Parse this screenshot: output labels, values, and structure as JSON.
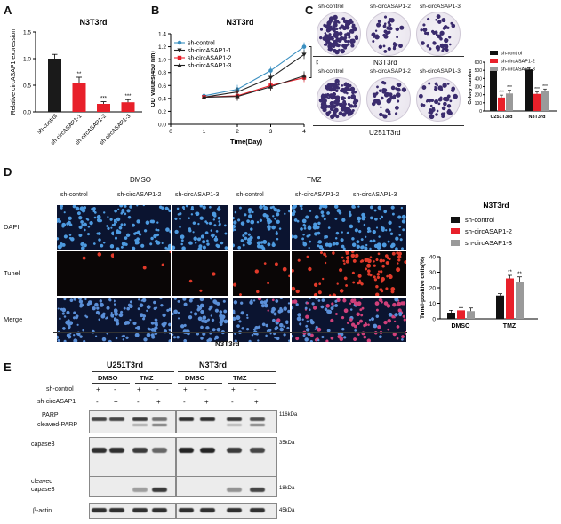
{
  "panels": {
    "A": {
      "letter": "A",
      "title": "N3T3rd"
    },
    "B": {
      "letter": "B",
      "title": "N3T3rd"
    },
    "C": {
      "letter": "C",
      "top_labels": [
        "sh-control",
        "sh-circASAP1-2",
        "sh-circASAP1-3"
      ],
      "row1_label": "N3T3rd",
      "row2_label": "U251T3rd"
    },
    "D": {
      "letter": "D",
      "group1": "DMSO",
      "group2": "TMZ",
      "columns": [
        "sh-control",
        "sh-circASAP1-2",
        "sh-circASAP1-3",
        "sh-control",
        "sh-circASAP1-2",
        "sh-circASAP1-3"
      ],
      "rows": [
        "DAPI",
        "Tunel",
        "Merge"
      ],
      "bottom_label": "N3T3rd"
    },
    "E": {
      "letter": "E",
      "cell1": "U251T3rd",
      "cell2": "N3T3rd",
      "treat1": "DMSO",
      "treat2": "TMZ",
      "row_control": "sh-control",
      "row_knock": "sh-circASAP1",
      "control_pattern": [
        "+",
        "-",
        "+",
        "-"
      ],
      "knock_pattern": [
        "-",
        "+",
        "-",
        "+"
      ],
      "blot_labels": [
        "PARP",
        "cleaved-PARP",
        "capase3",
        "cleaved capase3",
        "β-actin"
      ],
      "mw": [
        "116kDa",
        "35kDa",
        "18kDa",
        "45kDa"
      ]
    }
  },
  "chart_data": [
    {
      "type": "bar",
      "title": "N3T3rd",
      "categories": [
        "sh-control",
        "sh-circASAP1-1",
        "sh-circASAP1-2",
        "sh-circASAP1-3"
      ],
      "values": [
        1.0,
        0.55,
        0.15,
        0.18
      ],
      "errors": [
        0.08,
        0.1,
        0.04,
        0.05
      ],
      "significance": [
        "",
        "**",
        "***",
        "***"
      ],
      "colors": [
        "#1a1a1a",
        "#e8202a",
        "#e8202a",
        "#e8202a"
      ],
      "ylabel": "Relative circASAP1 expression",
      "ylim": [
        0,
        1.5
      ],
      "yticks": [
        "0.0",
        "0.5",
        "1.0",
        "1.5"
      ]
    },
    {
      "type": "line",
      "title": "N3T3rd",
      "x": [
        1,
        2,
        3,
        4
      ],
      "xlabel": "Time(Day)",
      "ylabel": "OD Values(450 nm)",
      "xlim": [
        0,
        4
      ],
      "ylim": [
        0,
        1.4
      ],
      "yticks": [
        "0.0",
        "0.2",
        "0.4",
        "0.6",
        "0.8",
        "1.0",
        "1.2",
        "1.4"
      ],
      "xticks": [
        "0",
        "1",
        "2",
        "3",
        "4"
      ],
      "series": [
        {
          "name": "sh-control",
          "values": [
            0.44,
            0.54,
            0.83,
            1.2
          ],
          "color": "#3a8fc0",
          "marker": "circle"
        },
        {
          "name": "sh-circASAP1-1",
          "values": [
            0.42,
            0.5,
            0.72,
            1.08
          ],
          "color": "#222222",
          "marker": "tri-down"
        },
        {
          "name": "sh-circASAP1-2",
          "values": [
            0.42,
            0.44,
            0.6,
            0.72
          ],
          "color": "#e8202a",
          "marker": "square"
        },
        {
          "name": "sh-circASAP1-3",
          "values": [
            0.42,
            0.43,
            0.58,
            0.75
          ],
          "color": "#222222",
          "marker": "triangle"
        }
      ],
      "significance": "**",
      "legend": "top-left"
    },
    {
      "type": "bar",
      "categories": [
        "U251T3rd",
        "N3T3rd"
      ],
      "ylabel": "Colony number",
      "ylim": [
        0,
        600
      ],
      "yticks": [
        "0",
        "100",
        "200",
        "300",
        "400",
        "500",
        "600"
      ],
      "series": [
        {
          "name": "sh-control",
          "values": [
            500,
            510
          ],
          "errors": [
            25,
            15
          ],
          "color": "#111111"
        },
        {
          "name": "sh-circASAP1-2",
          "values": [
            165,
            210
          ],
          "errors": [
            30,
            25
          ],
          "color": "#e8202a"
        },
        {
          "name": "sh-circASAP1-3",
          "values": [
            215,
            245
          ],
          "errors": [
            40,
            25
          ],
          "color": "#9a9a9a"
        }
      ],
      "significance": [
        [
          "",
          "***",
          "***"
        ],
        [
          "",
          "***",
          "***"
        ]
      ],
      "legend": "top-right"
    },
    {
      "type": "bar",
      "title": "N3T3rd",
      "categories": [
        "DMSO",
        "TMZ"
      ],
      "ylabel": "Tunel-positive cells(%)",
      "ylim": [
        0,
        40
      ],
      "yticks": [
        "0",
        "10",
        "20",
        "30",
        "40"
      ],
      "series": [
        {
          "name": "sh-control",
          "values": [
            4,
            15
          ],
          "errors": [
            1.5,
            1.2
          ],
          "color": "#111111"
        },
        {
          "name": "sh-circASAP1-2",
          "values": [
            5.5,
            26
          ],
          "errors": [
            1.8,
            2.0
          ],
          "color": "#e8202a"
        },
        {
          "name": "sh-circASAP1-3",
          "values": [
            5,
            24
          ],
          "errors": [
            2,
            3
          ],
          "color": "#9a9a9a"
        }
      ],
      "significance": [
        [
          "",
          "",
          ""
        ],
        [
          "",
          "**",
          "**"
        ]
      ],
      "legend": "top-right"
    }
  ]
}
